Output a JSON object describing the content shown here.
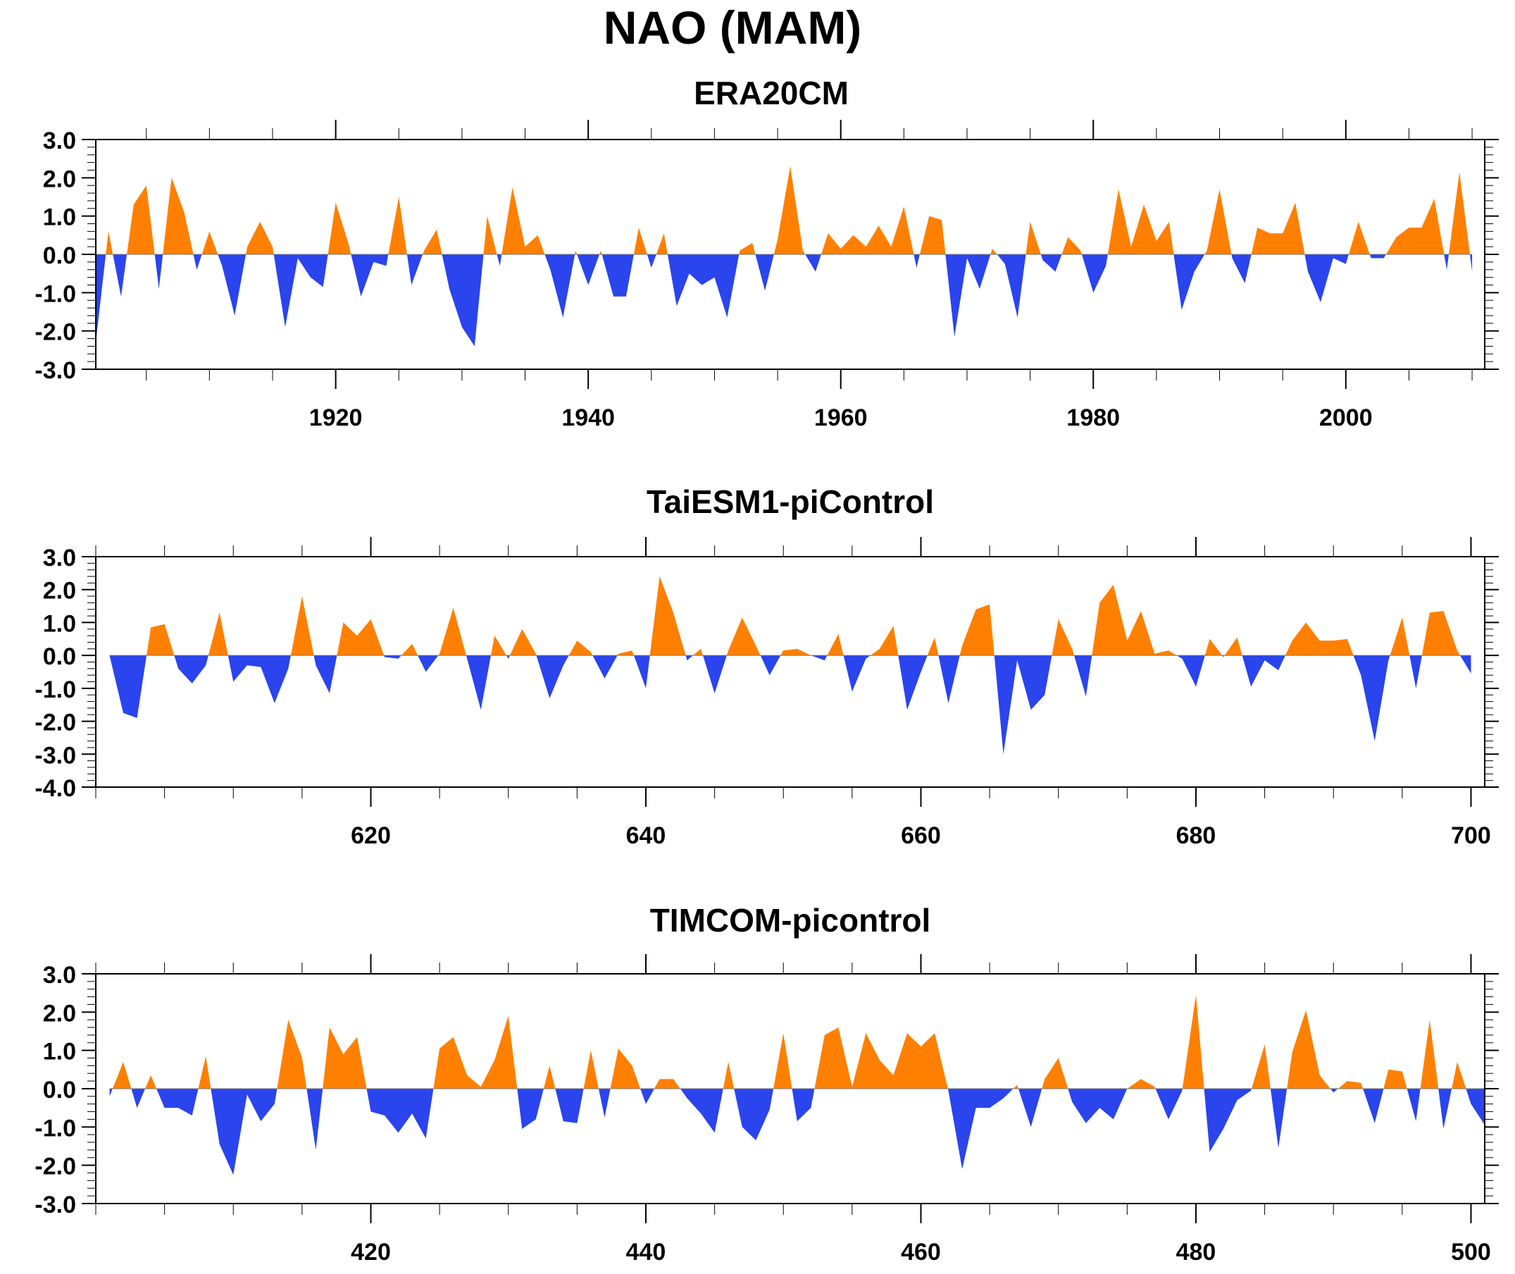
{
  "figure_title": "NAO (MAM)",
  "colors": {
    "positive": "#ff8000",
    "negative": "#2a44ee",
    "axis": "#000000"
  },
  "chart_data": [
    {
      "type": "area",
      "title": "ERA20CM",
      "xlabel": "",
      "ylabel": "",
      "xlim": [
        1901,
        2011
      ],
      "ylim": [
        -3,
        3
      ],
      "xticks": [
        1920,
        1940,
        1960,
        1980,
        2000
      ],
      "yticks": [
        -3,
        -2,
        -1,
        0,
        1,
        2,
        3
      ],
      "x_start": 1901,
      "values": [
        -2.3,
        0.6,
        -1.1,
        1.3,
        1.8,
        -0.9,
        2.0,
        1.1,
        -0.4,
        0.6,
        -0.3,
        -1.6,
        0.2,
        0.85,
        0.2,
        -1.9,
        -0.1,
        -0.6,
        -0.85,
        1.35,
        0.3,
        -1.1,
        -0.2,
        -0.3,
        1.5,
        -0.8,
        0.1,
        0.65,
        -0.9,
        -1.9,
        -2.4,
        1.0,
        -0.3,
        1.75,
        0.2,
        0.5,
        -0.4,
        -1.65,
        0.1,
        -0.8,
        0.1,
        -1.1,
        -1.1,
        0.7,
        -0.35,
        0.55,
        -1.35,
        -0.5,
        -0.8,
        -0.6,
        -1.65,
        0.1,
        0.3,
        -0.95,
        0.4,
        2.3,
        0.1,
        -0.45,
        0.55,
        0.15,
        0.5,
        0.2,
        0.75,
        0.2,
        1.25,
        -0.35,
        1.0,
        0.9,
        -2.15,
        -0.1,
        -0.9,
        0.15,
        -0.25,
        -1.65,
        0.85,
        -0.15,
        -0.45,
        0.45,
        0.1,
        -1.0,
        -0.3,
        1.7,
        0.2,
        1.3,
        0.35,
        0.85,
        -1.45,
        -0.45,
        0.1,
        1.7,
        -0.1,
        -0.75,
        0.7,
        0.55,
        0.55,
        1.35,
        -0.45,
        -1.25,
        -0.1,
        -0.25,
        0.85,
        -0.1,
        -0.1,
        0.45,
        0.7,
        0.7,
        1.45,
        -0.4,
        2.15,
        -0.45
      ]
    },
    {
      "type": "area",
      "title": "TaiESM1-piControl",
      "xlabel": "",
      "ylabel": "",
      "xlim": [
        600,
        701
      ],
      "ylim": [
        -4,
        3
      ],
      "xticks": [
        620,
        640,
        660,
        680,
        700
      ],
      "yticks": [
        -4,
        -3,
        -2,
        -1,
        0,
        1,
        2,
        3
      ],
      "x_start": 601,
      "values": [
        0.0,
        -1.75,
        -1.9,
        0.85,
        0.95,
        -0.4,
        -0.85,
        -0.3,
        1.3,
        -0.8,
        -0.3,
        -0.35,
        -1.45,
        -0.4,
        1.8,
        -0.3,
        -1.15,
        1.0,
        0.6,
        1.1,
        -0.05,
        -0.1,
        0.35,
        -0.5,
        0.05,
        1.45,
        -0.1,
        -1.65,
        0.6,
        -0.1,
        0.8,
        0.05,
        -1.3,
        -0.3,
        0.45,
        0.1,
        -0.7,
        0.05,
        0.15,
        -1.0,
        2.4,
        1.3,
        -0.15,
        0.2,
        -1.15,
        0.15,
        1.15,
        0.3,
        -0.6,
        0.15,
        0.2,
        0.0,
        -0.15,
        0.65,
        -1.1,
        -0.1,
        0.2,
        0.9,
        -1.65,
        -0.5,
        0.55,
        -1.45,
        0.3,
        1.4,
        1.55,
        -3.0,
        -0.15,
        -1.65,
        -1.2,
        1.1,
        0.2,
        -1.25,
        1.6,
        2.15,
        0.45,
        1.35,
        0.05,
        0.15,
        -0.1,
        -0.95,
        0.5,
        -0.05,
        0.55,
        -0.95,
        -0.15,
        -0.45,
        0.45,
        1.0,
        0.45,
        0.45,
        0.5,
        -0.6,
        -2.6,
        -0.15,
        1.15,
        -1.0,
        1.3,
        1.35,
        0.15,
        -0.55
      ]
    },
    {
      "type": "area",
      "title": "TIMCOM-picontrol",
      "xlabel": "",
      "ylabel": "",
      "xlim": [
        400,
        501
      ],
      "ylim": [
        -3,
        3
      ],
      "xticks": [
        420,
        440,
        460,
        480,
        500
      ],
      "yticks": [
        -3,
        -2,
        -1,
        0,
        1,
        2,
        3
      ],
      "x_start": 401,
      "values": [
        -0.2,
        0.7,
        -0.5,
        0.35,
        -0.5,
        -0.5,
        -0.7,
        0.85,
        -1.45,
        -2.25,
        -0.15,
        -0.85,
        -0.4,
        1.8,
        0.8,
        -1.6,
        1.6,
        0.9,
        1.35,
        -0.6,
        -0.7,
        -1.15,
        -0.65,
        -1.3,
        1.05,
        1.35,
        0.35,
        0.05,
        0.75,
        1.9,
        -1.05,
        -0.8,
        0.6,
        -0.85,
        -0.9,
        1.0,
        -0.75,
        1.05,
        0.6,
        -0.4,
        0.25,
        0.25,
        -0.25,
        -0.65,
        -1.15,
        0.7,
        -1.0,
        -1.35,
        -0.55,
        1.45,
        -0.85,
        -0.5,
        1.4,
        1.6,
        0.05,
        1.45,
        0.75,
        0.35,
        1.45,
        1.1,
        1.45,
        -0.05,
        -2.1,
        -0.5,
        -0.5,
        -0.25,
        0.1,
        -1.0,
        0.25,
        0.8,
        -0.35,
        -0.9,
        -0.5,
        -0.8,
        0.0,
        0.25,
        0.05,
        -0.8,
        -0.05,
        2.45,
        -1.65,
        -1.05,
        -0.3,
        -0.05,
        1.15,
        -1.55,
        0.95,
        2.05,
        0.35,
        -0.1,
        0.2,
        0.15,
        -0.9,
        0.5,
        0.45,
        -0.85,
        1.8,
        -1.05,
        0.7,
        -0.4,
        -0.95
      ]
    }
  ]
}
